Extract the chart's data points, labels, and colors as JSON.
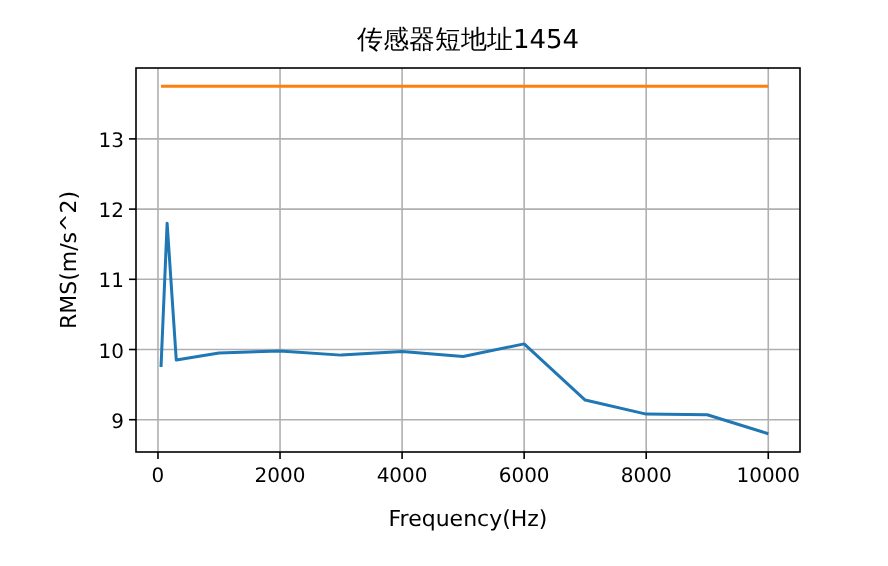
{
  "chart_data": {
    "type": "line",
    "title": "传感器短地址1454",
    "xlabel": "Frequency(Hz)",
    "ylabel": "RMS(m/s^2)",
    "xlim": [
      -360,
      10520
    ],
    "xticks": [
      0,
      2000,
      4000,
      6000,
      8000,
      10000
    ],
    "ylim": [
      8.54,
      14.01
    ],
    "yticks": [
      9,
      10,
      11,
      12,
      13
    ],
    "grid": true,
    "series": [
      {
        "color": "#1f77b4",
        "x": [
          50,
          150,
          300,
          1000,
          2000,
          3000,
          4000,
          5000,
          6000,
          7000,
          8000,
          9000,
          10000
        ],
        "values": [
          9.75,
          11.8,
          9.85,
          9.95,
          9.98,
          9.92,
          9.97,
          9.9,
          10.08,
          9.28,
          9.08,
          9.07,
          8.8
        ]
      },
      {
        "color": "#ff7f0e",
        "x": [
          50,
          10000
        ],
        "values": [
          13.75,
          13.75
        ]
      }
    ]
  }
}
